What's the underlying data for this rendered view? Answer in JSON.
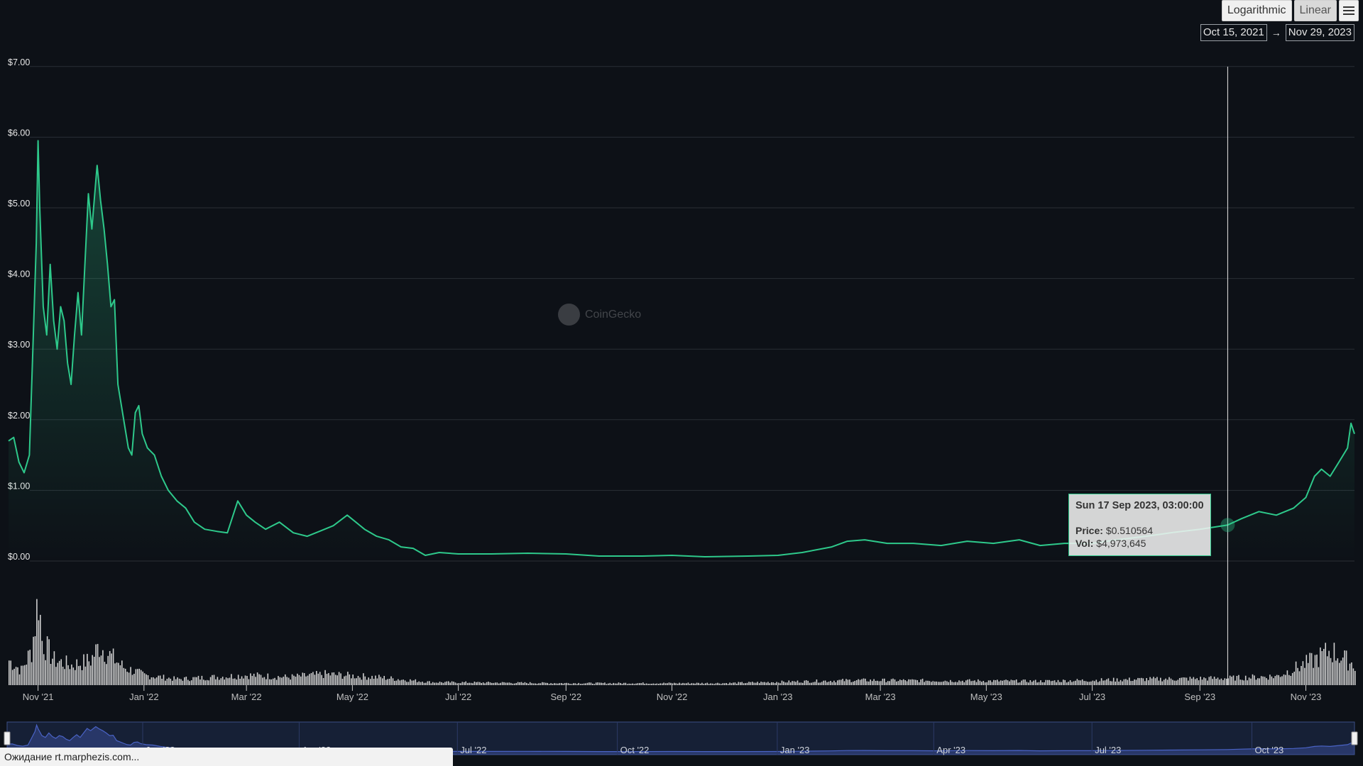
{
  "toolbar": {
    "log_label": "Logarithmic",
    "linear_label": "Linear",
    "menu_icon": "hamburger-menu-icon"
  },
  "range": {
    "from": "Oct 15, 2021",
    "arrow": "→",
    "to": "Nov 29, 2023"
  },
  "watermark": {
    "text": "CoinGecko",
    "logo": "coingecko-logo-icon"
  },
  "tooltip": {
    "date": "Sun 17 Sep 2023, 03:00:00",
    "price_label": "Price:",
    "price_value": "$0.510564",
    "vol_label": "Vol:",
    "vol_value": "$4,973,645"
  },
  "statusbar": {
    "text": "Ожидание rt.marphezis.com..."
  },
  "colors": {
    "background": "#0d1117",
    "price_line": "#2ec98b",
    "volume": "#d0d0d0",
    "navigator": "#4a63c5",
    "grid": "#2a2f36"
  },
  "chart_data": {
    "type": "line",
    "title": "",
    "xlabel": "",
    "ylabel": "",
    "x_range": [
      "2021-10-15",
      "2023-11-29"
    ],
    "ylim": [
      0,
      7
    ],
    "yticks": [
      "$0.00",
      "$1.00",
      "$2.00",
      "$3.00",
      "$4.00",
      "$5.00",
      "$6.00",
      "$7.00"
    ],
    "xticks": [
      {
        "date": "2021-11-01",
        "label": "Nov '21"
      },
      {
        "date": "2022-01-01",
        "label": "Jan '22"
      },
      {
        "date": "2022-03-01",
        "label": "Mar '22"
      },
      {
        "date": "2022-05-01",
        "label": "May '22"
      },
      {
        "date": "2022-07-01",
        "label": "Jul '22"
      },
      {
        "date": "2022-09-01",
        "label": "Sep '22"
      },
      {
        "date": "2022-11-01",
        "label": "Nov '22"
      },
      {
        "date": "2023-01-01",
        "label": "Jan '23"
      },
      {
        "date": "2023-03-01",
        "label": "Mar '23"
      },
      {
        "date": "2023-05-01",
        "label": "May '23"
      },
      {
        "date": "2023-07-01",
        "label": "Jul '23"
      },
      {
        "date": "2023-09-01",
        "label": "Sep '23"
      },
      {
        "date": "2023-11-01",
        "label": "Nov '23"
      }
    ],
    "navigator_ticks": [
      {
        "date": "2022-01-01",
        "label": "Jan '22"
      },
      {
        "date": "2022-04-01",
        "label": "Apr '22"
      },
      {
        "date": "2022-07-01",
        "label": "Jul '22"
      },
      {
        "date": "2022-10-01",
        "label": "Oct '22"
      },
      {
        "date": "2023-01-01",
        "label": "Jan '23"
      },
      {
        "date": "2023-04-01",
        "label": "Apr '23"
      },
      {
        "date": "2023-07-01",
        "label": "Jul '23"
      },
      {
        "date": "2023-10-01",
        "label": "Oct '23"
      }
    ],
    "crosshair_date": "2023-09-17",
    "series": [
      {
        "name": "Price",
        "points": [
          [
            "2021-10-15",
            1.7
          ],
          [
            "2021-10-18",
            1.75
          ],
          [
            "2021-10-21",
            1.4
          ],
          [
            "2021-10-24",
            1.25
          ],
          [
            "2021-10-27",
            1.5
          ],
          [
            "2021-10-29",
            3.0
          ],
          [
            "2021-10-31",
            4.5
          ],
          [
            "2021-11-01",
            5.95
          ],
          [
            "2021-11-02",
            5.0
          ],
          [
            "2021-11-04",
            3.6
          ],
          [
            "2021-11-06",
            3.2
          ],
          [
            "2021-11-08",
            4.2
          ],
          [
            "2021-11-10",
            3.4
          ],
          [
            "2021-11-12",
            3.0
          ],
          [
            "2021-11-14",
            3.6
          ],
          [
            "2021-11-16",
            3.4
          ],
          [
            "2021-11-18",
            2.8
          ],
          [
            "2021-11-20",
            2.5
          ],
          [
            "2021-11-22",
            3.2
          ],
          [
            "2021-11-24",
            3.8
          ],
          [
            "2021-11-26",
            3.2
          ],
          [
            "2021-11-28",
            4.2
          ],
          [
            "2021-11-30",
            5.2
          ],
          [
            "2021-12-02",
            4.7
          ],
          [
            "2021-12-04",
            5.3
          ],
          [
            "2021-12-05",
            5.6
          ],
          [
            "2021-12-07",
            5.1
          ],
          [
            "2021-12-09",
            4.7
          ],
          [
            "2021-12-11",
            4.2
          ],
          [
            "2021-12-13",
            3.6
          ],
          [
            "2021-12-15",
            3.7
          ],
          [
            "2021-12-17",
            2.5
          ],
          [
            "2021-12-19",
            2.2
          ],
          [
            "2021-12-21",
            1.9
          ],
          [
            "2021-12-23",
            1.6
          ],
          [
            "2021-12-25",
            1.5
          ],
          [
            "2021-12-27",
            2.1
          ],
          [
            "2021-12-29",
            2.2
          ],
          [
            "2021-12-31",
            1.8
          ],
          [
            "2022-01-03",
            1.6
          ],
          [
            "2022-01-07",
            1.5
          ],
          [
            "2022-01-11",
            1.2
          ],
          [
            "2022-01-15",
            1.0
          ],
          [
            "2022-01-20",
            0.85
          ],
          [
            "2022-01-25",
            0.75
          ],
          [
            "2022-01-30",
            0.55
          ],
          [
            "2022-02-05",
            0.45
          ],
          [
            "2022-02-12",
            0.42
          ],
          [
            "2022-02-18",
            0.4
          ],
          [
            "2022-02-24",
            0.85
          ],
          [
            "2022-03-01",
            0.65
          ],
          [
            "2022-03-06",
            0.55
          ],
          [
            "2022-03-12",
            0.45
          ],
          [
            "2022-03-20",
            0.55
          ],
          [
            "2022-03-28",
            0.4
          ],
          [
            "2022-04-05",
            0.35
          ],
          [
            "2022-04-12",
            0.42
          ],
          [
            "2022-04-20",
            0.5
          ],
          [
            "2022-04-28",
            0.65
          ],
          [
            "2022-05-03",
            0.55
          ],
          [
            "2022-05-08",
            0.45
          ],
          [
            "2022-05-15",
            0.35
          ],
          [
            "2022-05-22",
            0.3
          ],
          [
            "2022-05-29",
            0.2
          ],
          [
            "2022-06-05",
            0.18
          ],
          [
            "2022-06-12",
            0.08
          ],
          [
            "2022-06-20",
            0.12
          ],
          [
            "2022-07-01",
            0.1
          ],
          [
            "2022-07-20",
            0.1
          ],
          [
            "2022-08-10",
            0.11
          ],
          [
            "2022-09-01",
            0.1
          ],
          [
            "2022-09-20",
            0.07
          ],
          [
            "2022-10-15",
            0.07
          ],
          [
            "2022-11-01",
            0.08
          ],
          [
            "2022-11-20",
            0.06
          ],
          [
            "2022-12-15",
            0.07
          ],
          [
            "2023-01-01",
            0.08
          ],
          [
            "2023-01-15",
            0.12
          ],
          [
            "2023-02-01",
            0.2
          ],
          [
            "2023-02-10",
            0.28
          ],
          [
            "2023-02-20",
            0.3
          ],
          [
            "2023-03-05",
            0.25
          ],
          [
            "2023-03-20",
            0.25
          ],
          [
            "2023-04-05",
            0.22
          ],
          [
            "2023-04-20",
            0.28
          ],
          [
            "2023-05-05",
            0.25
          ],
          [
            "2023-05-20",
            0.3
          ],
          [
            "2023-06-01",
            0.22
          ],
          [
            "2023-06-15",
            0.25
          ],
          [
            "2023-07-01",
            0.25
          ],
          [
            "2023-07-15",
            0.3
          ],
          [
            "2023-08-01",
            0.35
          ],
          [
            "2023-08-15",
            0.4
          ],
          [
            "2023-09-01",
            0.45
          ],
          [
            "2023-09-17",
            0.51
          ],
          [
            "2023-09-25",
            0.6
          ],
          [
            "2023-10-05",
            0.7
          ],
          [
            "2023-10-15",
            0.65
          ],
          [
            "2023-10-25",
            0.75
          ],
          [
            "2023-11-01",
            0.9
          ],
          [
            "2023-11-06",
            1.2
          ],
          [
            "2023-11-10",
            1.3
          ],
          [
            "2023-11-15",
            1.2
          ],
          [
            "2023-11-20",
            1.4
          ],
          [
            "2023-11-25",
            1.6
          ],
          [
            "2023-11-27",
            1.95
          ],
          [
            "2023-11-29",
            1.8
          ]
        ]
      },
      {
        "name": "Volume",
        "points": [
          [
            "2021-10-15",
            0.25
          ],
          [
            "2021-10-22",
            0.15
          ],
          [
            "2021-10-28",
            0.35
          ],
          [
            "2021-11-01",
            0.9
          ],
          [
            "2021-11-03",
            0.45
          ],
          [
            "2021-11-10",
            0.25
          ],
          [
            "2021-11-20",
            0.2
          ],
          [
            "2021-12-01",
            0.25
          ],
          [
            "2021-12-06",
            0.4
          ],
          [
            "2021-12-12",
            0.3
          ],
          [
            "2021-12-20",
            0.18
          ],
          [
            "2022-01-01",
            0.1
          ],
          [
            "2022-01-20",
            0.06
          ],
          [
            "2022-03-01",
            0.1
          ],
          [
            "2022-03-25",
            0.08
          ],
          [
            "2022-04-15",
            0.11
          ],
          [
            "2022-05-15",
            0.08
          ],
          [
            "2022-06-15",
            0.03
          ],
          [
            "2022-09-01",
            0.02
          ],
          [
            "2022-12-01",
            0.02
          ],
          [
            "2023-02-15",
            0.05
          ],
          [
            "2023-06-01",
            0.04
          ],
          [
            "2023-08-01",
            0.06
          ],
          [
            "2023-09-17",
            0.07
          ],
          [
            "2023-10-15",
            0.09
          ],
          [
            "2023-11-05",
            0.25
          ],
          [
            "2023-11-15",
            0.35
          ],
          [
            "2023-11-29",
            0.2
          ]
        ],
        "unit": "relative"
      }
    ]
  }
}
